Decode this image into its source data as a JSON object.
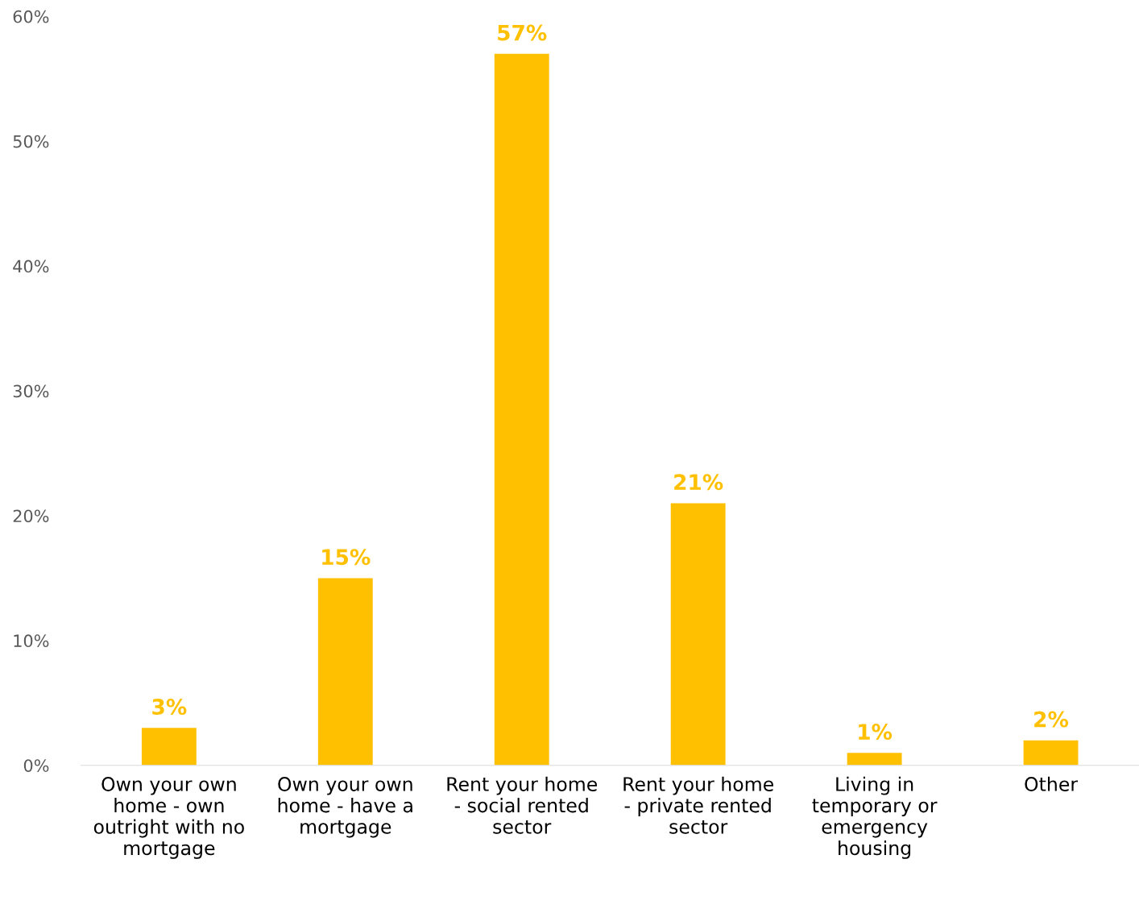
{
  "chart_data": {
    "type": "bar",
    "categories": [
      "Own your own\nhome - own\noutright with no\nmortgage",
      "Own your own\nhome - have a\nmortgage",
      "Rent your home\n- social rented\nsector",
      "Rent your home\n- private rented\nsector",
      "Living in\ntemporary or\nemergency\nhousing",
      "Other"
    ],
    "values": [
      3,
      15,
      57,
      21,
      1,
      2
    ],
    "color": "#ffc000",
    "value_labels": [
      "3%",
      "15%",
      "57%",
      "21%",
      "1%",
      "2%"
    ],
    "ylim": [
      0,
      60
    ],
    "yticks": [
      {
        "value": 0,
        "label": "0%"
      },
      {
        "value": 10,
        "label": "10%"
      },
      {
        "value": 20,
        "label": "20%"
      },
      {
        "value": 30,
        "label": "30%"
      },
      {
        "value": 40,
        "label": "40%"
      },
      {
        "value": 50,
        "label": "50%"
      },
      {
        "value": 60,
        "label": "60%"
      }
    ],
    "grid": false,
    "legend": false
  }
}
